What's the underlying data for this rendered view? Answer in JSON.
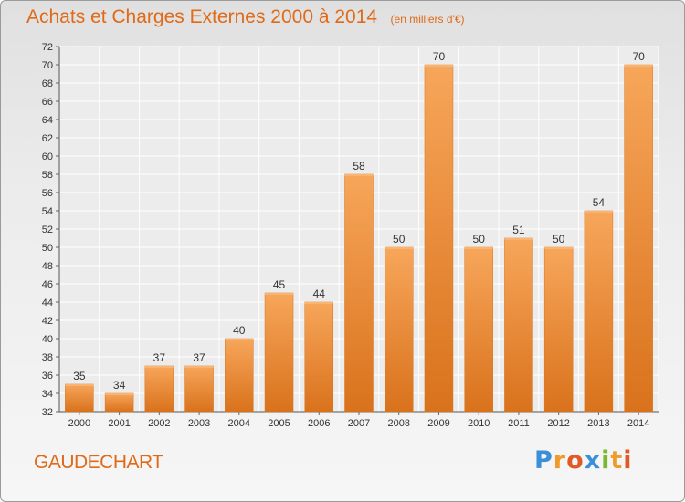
{
  "header": {
    "title": "Achats et Charges Externes 2000 à 2014",
    "unit": "(en milliers d'€)"
  },
  "footer": {
    "commune": "GAUDECHART",
    "brand_letters": [
      "P",
      "r",
      "o",
      "x",
      "i",
      "t",
      "i"
    ],
    "brand_colors": [
      "#3a8fd8",
      "#f09a2a",
      "#e05a28",
      "#3a8fd8",
      "#7ab830",
      "#f09a2a",
      "#e05a28"
    ]
  },
  "chart_data": {
    "type": "bar",
    "categories": [
      "2000",
      "2001",
      "2002",
      "2003",
      "2004",
      "2005",
      "2006",
      "2007",
      "2008",
      "2009",
      "2010",
      "2011",
      "2012",
      "2013",
      "2014"
    ],
    "values": [
      35,
      34,
      37,
      37,
      40,
      45,
      44,
      58,
      50,
      70,
      50,
      51,
      50,
      54,
      70
    ],
    "ylim": [
      32,
      72
    ],
    "yticks": [
      32,
      34,
      36,
      38,
      40,
      42,
      44,
      46,
      48,
      50,
      52,
      54,
      56,
      58,
      60,
      62,
      64,
      66,
      68,
      70,
      72
    ],
    "grid": true,
    "bar_color": "#f0922e",
    "bar_color_dark": "#d9721c"
  }
}
